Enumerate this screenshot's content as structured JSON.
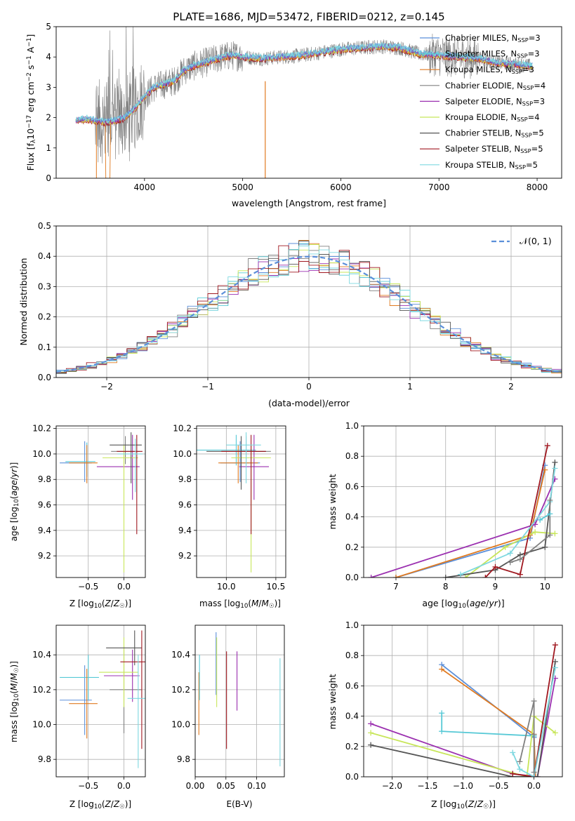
{
  "colors": {
    "Chabrier MILES": "#5b8fd9",
    "Salpeter MILES": "#57c9d6",
    "Kroupa MILES": "#e07a20",
    "Chabrier ELODIE": "#808080",
    "Salpeter ELODIE": "#9b30b0",
    "Kroupa ELODIE": "#c8e65a",
    "Chabrier STELIB": "#555555",
    "Salpeter STELIB": "#a01820",
    "Kroupa STELIB": "#7ed8e0"
  },
  "chart_data": [
    {
      "id": "spectrum",
      "type": "line",
      "title": "PLATE=1686, MJD=53472, FIBERID=0212, z=0.145",
      "xlabel": "wavelength [Angstrom, rest frame]",
      "ylabel": "Flux [f_λ10^-17 erg cm^-2 s^-1 A^-1]",
      "xlim": [
        3100,
        8250
      ],
      "ylim": [
        0,
        5
      ],
      "xticks": [
        4000,
        5000,
        6000,
        7000,
        8000
      ],
      "yticks": [
        0,
        1,
        2,
        3,
        4,
        5
      ],
      "grid": false,
      "legend_position": "top-right",
      "legend": [
        {
          "label": "Chabrier MILES, N",
          "sub": "SSP",
          "eq": "=3",
          "color": "#5b8fd9"
        },
        {
          "label": "Salpeter MILES, N",
          "sub": "SSP",
          "eq": "=3",
          "color": "#57c9d6"
        },
        {
          "label": "Kroupa MILES, N",
          "sub": "SSP",
          "eq": "=3",
          "color": "#e07a20"
        },
        {
          "label": "Chabrier ELODIE, N",
          "sub": "SSP",
          "eq": "=4",
          "color": "#808080"
        },
        {
          "label": "Salpeter ELODIE, N",
          "sub": "SSP",
          "eq": "=3",
          "color": "#9b30b0"
        },
        {
          "label": "Kroupa ELODIE, N",
          "sub": "SSP",
          "eq": "=4",
          "color": "#c8e65a"
        },
        {
          "label": "Chabrier STELIB, N",
          "sub": "SSP",
          "eq": "=5",
          "color": "#555555"
        },
        {
          "label": "Salpeter STELIB, N",
          "sub": "SSP",
          "eq": "=5",
          "color": "#a01820"
        },
        {
          "label": "Kroupa STELIB, N",
          "sub": "SSP",
          "eq": "=5",
          "color": "#7ed8e0"
        }
      ],
      "continuum": {
        "x": [
          3300,
          3400,
          3500,
          3600,
          3700,
          3800,
          3900,
          4000,
          4100,
          4200,
          4300,
          4400,
          4500,
          4600,
          4700,
          4800,
          4900,
          5000,
          5200,
          5400,
          5600,
          5800,
          6000,
          6200,
          6400,
          6600,
          6800,
          7000,
          7200,
          7400,
          7600,
          7800,
          7950
        ],
        "y": [
          1.9,
          1.95,
          1.9,
          1.85,
          1.9,
          2.0,
          2.3,
          2.7,
          3.0,
          3.1,
          3.2,
          3.55,
          3.7,
          3.8,
          3.9,
          4.0,
          4.05,
          4.0,
          3.95,
          4.0,
          4.05,
          4.15,
          4.25,
          4.3,
          4.35,
          4.3,
          4.1,
          4.05,
          4.0,
          3.95,
          3.8,
          3.75,
          3.7
        ]
      }
    },
    {
      "id": "residuals",
      "type": "line",
      "xlabel": "(data-model)/error",
      "ylabel": "Normed distribution",
      "xlim": [
        -2.5,
        2.5
      ],
      "ylim": [
        0,
        0.5
      ],
      "xticks": [
        -2,
        -1,
        0,
        1,
        2
      ],
      "yticks": [
        0.0,
        0.1,
        0.2,
        0.3,
        0.4,
        0.5
      ],
      "grid": true,
      "legend_position": "top-right",
      "legend": [
        {
          "label": "𝒩(0, 1)",
          "color": "#5b8fd9",
          "style": "dashed"
        }
      ]
    },
    {
      "id": "age-vs-z",
      "type": "scatter",
      "xlabel": "Z [log10(Z/Z☉)]",
      "ylabel": "age  [log10(age/yr)]",
      "xlim": [
        -0.95,
        0.3
      ],
      "ylim": [
        9.03,
        10.22
      ],
      "xticks": [
        -0.5,
        0.0
      ],
      "yticks": [
        9.2,
        9.4,
        9.6,
        9.8,
        10.0,
        10.2
      ],
      "grid": true,
      "points": [
        {
          "model": "Chabrier MILES",
          "x": -0.55,
          "xerr": [
            0.35,
            0.1
          ],
          "y": 9.93,
          "yerr": [
            0.15,
            0.17
          ]
        },
        {
          "model": "Salpeter MILES",
          "x": -0.52,
          "xerr": [
            0.3,
            0.12
          ],
          "y": 9.94,
          "yerr": [
            0.12,
            0.15
          ]
        },
        {
          "model": "Kroupa MILES",
          "x": -0.52,
          "xerr": [
            0.25,
            0.15
          ],
          "y": 9.93,
          "yerr": [
            0.16,
            0.14
          ]
        },
        {
          "model": "Chabrier ELODIE",
          "x": 0.02,
          "xerr": [
            0.2,
            0.2
          ],
          "y": 10.02,
          "yerr": [
            0.1,
            0.12
          ]
        },
        {
          "model": "Salpeter ELODIE",
          "x": 0.12,
          "xerr": [
            0.5,
            0.1
          ],
          "y": 9.9,
          "yerr": [
            0.26,
            0.25
          ]
        },
        {
          "model": "Kroupa ELODIE",
          "x": 0.0,
          "xerr": [
            0.3,
            0.2
          ],
          "y": 9.97,
          "yerr": [
            0.9,
            0.1
          ]
        },
        {
          "model": "Chabrier STELIB",
          "x": 0.1,
          "xerr": [
            0.3,
            0.15
          ],
          "y": 10.07,
          "yerr": [
            0.3,
            0.1
          ]
        },
        {
          "model": "Salpeter STELIB",
          "x": 0.18,
          "xerr": [
            0.28,
            0.08
          ],
          "y": 10.02,
          "yerr": [
            0.65,
            0.13
          ]
        },
        {
          "model": "Kroupa STELIB",
          "x": 0.16,
          "xerr": [
            0.25,
            0.1
          ],
          "y": 10.0,
          "yerr": [
            0.3,
            0.12
          ]
        }
      ]
    },
    {
      "id": "age-vs-mass",
      "type": "scatter",
      "xlabel": "mass [log10(M/M☉)]",
      "ylabel": "",
      "xlim": [
        9.7,
        10.6
      ],
      "ylim": [
        9.03,
        10.22
      ],
      "xticks": [
        10.0,
        10.5
      ],
      "yticks": [
        9.2,
        9.4,
        9.6,
        9.8,
        10.0,
        10.2
      ],
      "grid": true,
      "points": [
        {
          "model": "Chabrier MILES",
          "x": 10.14,
          "xerr": [
            0.2,
            0.2
          ],
          "y": 9.93,
          "yerr": [
            0.15,
            0.17
          ]
        },
        {
          "model": "Salpeter MILES",
          "x": 10.1,
          "xerr": [
            0.4,
            0.2
          ],
          "y": 10.03,
          "yerr": [
            0.12,
            0.12
          ]
        },
        {
          "model": "Kroupa MILES",
          "x": 10.12,
          "xerr": [
            0.2,
            0.2
          ],
          "y": 9.93,
          "yerr": [
            0.16,
            0.14
          ]
        },
        {
          "model": "Chabrier ELODIE",
          "x": 10.2,
          "xerr": [
            0.25,
            0.25
          ],
          "y": 10.02,
          "yerr": [
            0.1,
            0.12
          ]
        },
        {
          "model": "Salpeter ELODIE",
          "x": 10.28,
          "xerr": [
            0.15,
            0.15
          ],
          "y": 9.9,
          "yerr": [
            0.26,
            0.25
          ]
        },
        {
          "model": "Kroupa ELODIE",
          "x": 10.25,
          "xerr": [
            0.2,
            0.2
          ],
          "y": 9.97,
          "yerr": [
            0.9,
            0.1
          ]
        },
        {
          "model": "Chabrier STELIB",
          "x": 10.15,
          "xerr": [
            0.35,
            0.25
          ],
          "y": 10.02,
          "yerr": [
            0.3,
            0.12
          ]
        },
        {
          "model": "Salpeter STELIB",
          "x": 10.25,
          "xerr": [
            0.3,
            0.15
          ],
          "y": 10.02,
          "yerr": [
            0.65,
            0.13
          ]
        },
        {
          "model": "Kroupa STELIB",
          "x": 10.2,
          "xerr": [
            0.2,
            0.15
          ],
          "y": 10.07,
          "yerr": [
            0.3,
            0.1
          ]
        }
      ]
    },
    {
      "id": "mass-weight-vs-age",
      "type": "line",
      "xlabel": "age  [log10(age/yr)]",
      "ylabel": "mass weight",
      "xlim": [
        6.35,
        10.35
      ],
      "ylim": [
        0,
        1
      ],
      "xticks": [
        7,
        8,
        9,
        10
      ],
      "yticks": [
        0.0,
        0.2,
        0.4,
        0.6,
        0.8,
        1.0
      ],
      "grid": true,
      "series": [
        {
          "name": "Chabrier MILES",
          "x": [
            7.0,
            9.7,
            10.0
          ],
          "y": [
            0.0,
            0.26,
            0.74
          ]
        },
        {
          "name": "Kroupa MILES",
          "x": [
            7.0,
            9.7,
            10.0
          ],
          "y": [
            0.0,
            0.28,
            0.71
          ]
        },
        {
          "name": "Salpeter ELODIE",
          "x": [
            6.5,
            9.8,
            10.2
          ],
          "y": [
            0.0,
            0.35,
            0.65
          ]
        },
        {
          "name": "Kroupa ELODIE",
          "x": [
            8.4,
            9.2,
            9.8,
            10.2
          ],
          "y": [
            0.0,
            0.2,
            0.3,
            0.29
          ]
        },
        {
          "name": "Chabrier STELIB",
          "x": [
            8.0,
            9.0,
            9.5,
            10.0,
            10.2
          ],
          "y": [
            0.0,
            0.05,
            0.15,
            0.2,
            0.76
          ]
        },
        {
          "name": "Salpeter STELIB",
          "x": [
            8.8,
            9.0,
            9.5,
            10.05
          ],
          "y": [
            0.0,
            0.07,
            0.02,
            0.87
          ]
        },
        {
          "name": "Kroupa STELIB",
          "x": [
            8.3,
            9.3,
            10.1,
            10.2
          ],
          "y": [
            0.02,
            0.16,
            0.5,
            0.72
          ]
        },
        {
          "name": "Chabrier ELODIE",
          "x": [
            9.3,
            9.5,
            10.1,
            10.1
          ],
          "y": [
            0.1,
            0.12,
            0.28,
            0.51
          ]
        },
        {
          "name": "Salpeter MILES",
          "x": [
            9.9,
            10.1
          ],
          "y": [
            0.38,
            0.42
          ]
        }
      ]
    },
    {
      "id": "mass-vs-z",
      "type": "scatter",
      "xlabel": "Z [log10(Z/Z☉)]",
      "ylabel": "mass [log10(M/M☉)]",
      "xlim": [
        -0.95,
        0.3
      ],
      "ylim": [
        9.7,
        10.57
      ],
      "xticks": [
        -0.5,
        0.0
      ],
      "yticks": [
        9.8,
        10.0,
        10.2,
        10.4
      ],
      "grid": true,
      "points": [
        {
          "model": "Chabrier MILES",
          "x": -0.55,
          "xerr": [
            0.35,
            0.1
          ],
          "y": 10.14,
          "yerr": [
            0.2,
            0.2
          ]
        },
        {
          "model": "Salpeter MILES",
          "x": -0.5,
          "xerr": [
            0.4,
            0.15
          ],
          "y": 10.27,
          "yerr": [
            0.13,
            0.13
          ]
        },
        {
          "model": "Kroupa MILES",
          "x": -0.52,
          "xerr": [
            0.25,
            0.15
          ],
          "y": 10.12,
          "yerr": [
            0.2,
            0.2
          ]
        },
        {
          "model": "Chabrier ELODIE",
          "x": 0.0,
          "xerr": [
            0.2,
            0.25
          ],
          "y": 10.2,
          "yerr": [
            0.25,
            0.25
          ]
        },
        {
          "model": "Salpeter ELODIE",
          "x": 0.12,
          "xerr": [
            0.4,
            0.1
          ],
          "y": 10.28,
          "yerr": [
            0.15,
            0.15
          ]
        },
        {
          "model": "Kroupa ELODIE",
          "x": 0.0,
          "xerr": [
            0.35,
            0.2
          ],
          "y": 10.3,
          "yerr": [
            0.2,
            0.2
          ]
        },
        {
          "model": "Chabrier STELIB",
          "x": 0.15,
          "xerr": [
            0.4,
            0.1
          ],
          "y": 10.44,
          "yerr": [
            0.1,
            0.1
          ]
        },
        {
          "model": "Salpeter STELIB",
          "x": 0.25,
          "xerr": [
            0.3,
            0.05
          ],
          "y": 10.36,
          "yerr": [
            0.5,
            0.18
          ]
        },
        {
          "model": "Kroupa STELIB",
          "x": 0.2,
          "xerr": [
            0.15,
            0.1
          ],
          "y": 10.15,
          "yerr": [
            0.4,
            0.25
          ]
        }
      ]
    },
    {
      "id": "mass-vs-ebv",
      "type": "scatter",
      "xlabel": "E(B-V)",
      "ylabel": "",
      "xlim": [
        0.0,
        0.145
      ],
      "ylim": [
        9.7,
        10.57
      ],
      "xticks": [
        0.0,
        0.05,
        0.1
      ],
      "xtick_labels": [
        "0.00",
        "0.05",
        "0.10"
      ],
      "yticks": [
        9.8,
        10.0,
        10.2,
        10.4
      ],
      "grid": true,
      "points": [
        {
          "model": "Kroupa MILES",
          "x": 0.006,
          "y": 10.12,
          "yerr": [
            0.18,
            0.18
          ]
        },
        {
          "model": "Salpeter MILES",
          "x": 0.007,
          "y": 10.27,
          "yerr": [
            0.13,
            0.13
          ]
        },
        {
          "model": "Chabrier MILES",
          "x": 0.034,
          "y": 10.35,
          "yerr": [
            0.18,
            0.18
          ]
        },
        {
          "model": "Kroupa ELODIE",
          "x": 0.035,
          "y": 10.3,
          "yerr": [
            0.2,
            0.2
          ]
        },
        {
          "model": "Salpeter STELIB",
          "x": 0.051,
          "y": 10.2,
          "yerr": [
            0.34,
            0.22
          ]
        },
        {
          "model": "Salpeter ELODIE",
          "x": 0.068,
          "y": 10.25,
          "yerr": [
            0.17,
            0.17
          ]
        },
        {
          "model": "Kroupa STELIB",
          "x": 0.138,
          "y": 10.08,
          "yerr": [
            0.32,
            0.3
          ]
        }
      ]
    },
    {
      "id": "mass-weight-vs-z",
      "type": "line",
      "xlabel": "Z [log10(Z/Z☉)]",
      "ylabel": "mass weight",
      "xlim": [
        -2.4,
        0.4
      ],
      "ylim": [
        0,
        1
      ],
      "xticks": [
        -2.0,
        -1.5,
        -1.0,
        -0.5,
        0.0
      ],
      "yticks": [
        0.0,
        0.2,
        0.4,
        0.6,
        0.8,
        1.0
      ],
      "grid": true,
      "series": [
        {
          "name": "Chabrier MILES",
          "x": [
            -1.3,
            0.0,
            0.02
          ],
          "y": [
            0.74,
            0.26,
            0.0
          ]
        },
        {
          "name": "Kroupa MILES",
          "x": [
            -1.3,
            0.0,
            0.02
          ],
          "y": [
            0.71,
            0.28,
            0.0
          ]
        },
        {
          "name": "Salpeter MILES",
          "x": [
            -1.3,
            -1.3,
            0.0
          ],
          "y": [
            0.42,
            0.3,
            0.27
          ]
        },
        {
          "name": "Salpeter ELODIE",
          "x": [
            -2.3,
            -0.3,
            0.05,
            0.3
          ],
          "y": [
            0.35,
            0.02,
            0.0,
            0.65
          ]
        },
        {
          "name": "Kroupa ELODIE",
          "x": [
            -2.3,
            -0.1,
            0.0,
            0.3
          ],
          "y": [
            0.29,
            0.0,
            0.4,
            0.29
          ]
        },
        {
          "name": "Chabrier STELIB",
          "x": [
            -2.3,
            -0.3,
            0.05,
            0.3
          ],
          "y": [
            0.21,
            0.0,
            0.0,
            0.76
          ]
        },
        {
          "name": "Salpeter STELIB",
          "x": [
            -0.3,
            0.0,
            0.3
          ],
          "y": [
            0.02,
            0.0,
            0.87
          ]
        },
        {
          "name": "Kroupa STELIB",
          "x": [
            -0.3,
            -0.2,
            0.0,
            0.3
          ],
          "y": [
            0.16,
            0.05,
            0.0,
            0.72
          ]
        },
        {
          "name": "Chabrier ELODIE",
          "x": [
            -0.2,
            0.0,
            0.0,
            0.0
          ],
          "y": [
            0.1,
            0.5,
            0.03,
            0.28
          ]
        }
      ]
    }
  ]
}
